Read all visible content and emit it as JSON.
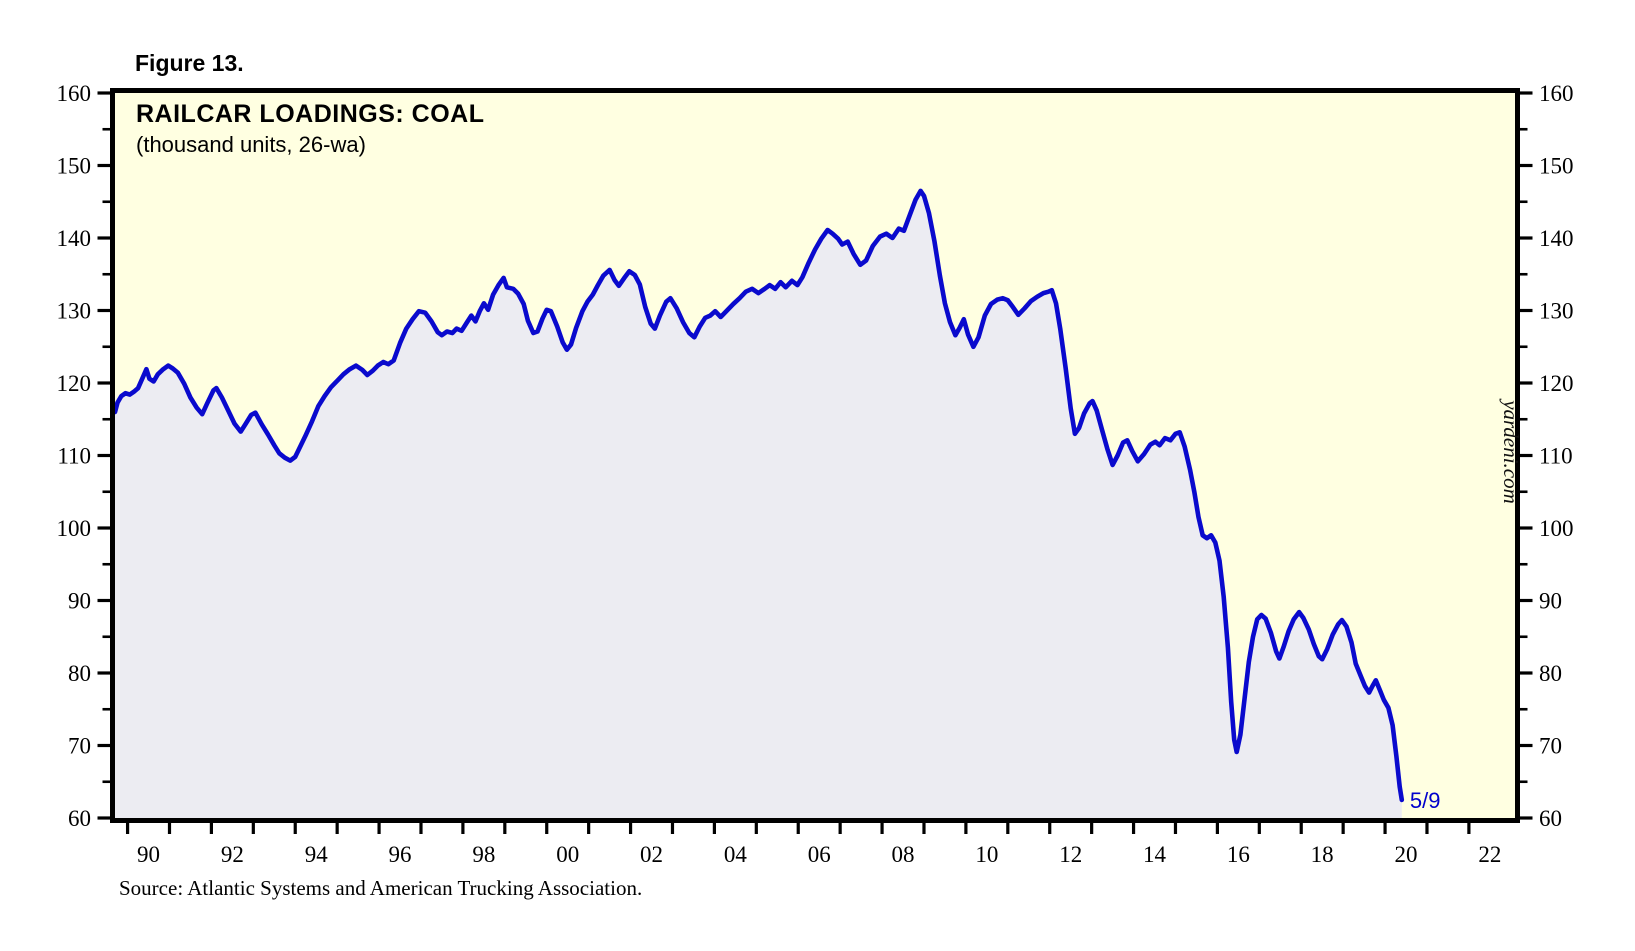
{
  "figure": {
    "label": "Figure 13."
  },
  "chart": {
    "title": "RAILCAR LOADINGS: COAL",
    "subtitle": "(thousand units, 26-wa)",
    "watermark": "yardeni.com",
    "source": "Source: Atlantic Systems and American Trucking Association."
  },
  "colors": {
    "line": "#0a0acd",
    "fill": "#ececf2",
    "plot_background": "#ffffe1",
    "border": "#000000",
    "annotation": "#0000cc",
    "text": "#000000"
  },
  "chart_data": {
    "type": "line",
    "title": "RAILCAR LOADINGS: COAL",
    "subtitle": "(thousand units, 26-wa)",
    "grid": "off",
    "legend": "none",
    "watermark": "yardeni.com",
    "x_axis": {
      "min": 1989.7,
      "max": 2023.1,
      "tick_start": 1990,
      "tick_end": 2022,
      "tick_step_years": 1,
      "label_years": [
        1990,
        1992,
        1994,
        1996,
        1998,
        2000,
        2002,
        2004,
        2006,
        2008,
        2010,
        2012,
        2014,
        2016,
        2018,
        2020,
        2022
      ],
      "labels": [
        "90",
        "92",
        "94",
        "96",
        "98",
        "00",
        "02",
        "04",
        "06",
        "08",
        "10",
        "12",
        "14",
        "16",
        "18",
        "20",
        "22"
      ],
      "label_offset_years": 0.5
    },
    "y_axis": {
      "min": 60,
      "max": 160,
      "major_step": 10,
      "minor_step": 5,
      "labels": [
        "60",
        "70",
        "80",
        "90",
        "100",
        "110",
        "120",
        "130",
        "140",
        "150",
        "160"
      ],
      "mirrored_right": true
    },
    "last_point_label": {
      "text": "5/9",
      "x": 2020.45,
      "y": 62.5,
      "color": "#0000cc"
    },
    "series": [
      {
        "name": "Railcar Loadings: Coal (thousand units, 26-week average)",
        "color": "#0a0acd",
        "fill_color": "#ececf2",
        "points": [
          [
            1989.7,
            116.0
          ],
          [
            1989.76,
            117.3
          ],
          [
            1989.85,
            118.2
          ],
          [
            1989.95,
            118.6
          ],
          [
            1990.05,
            118.4
          ],
          [
            1990.15,
            118.8
          ],
          [
            1990.25,
            119.3
          ],
          [
            1990.38,
            121.0
          ],
          [
            1990.45,
            121.9
          ],
          [
            1990.52,
            120.6
          ],
          [
            1990.62,
            120.2
          ],
          [
            1990.72,
            121.2
          ],
          [
            1990.85,
            121.9
          ],
          [
            1990.97,
            122.4
          ],
          [
            1991.08,
            122.0
          ],
          [
            1991.2,
            121.4
          ],
          [
            1991.35,
            119.9
          ],
          [
            1991.5,
            118.0
          ],
          [
            1991.65,
            116.6
          ],
          [
            1991.78,
            115.7
          ],
          [
            1991.9,
            117.2
          ],
          [
            1992.05,
            119.0
          ],
          [
            1992.12,
            119.3
          ],
          [
            1992.25,
            118.0
          ],
          [
            1992.4,
            116.2
          ],
          [
            1992.55,
            114.4
          ],
          [
            1992.7,
            113.3
          ],
          [
            1992.82,
            114.4
          ],
          [
            1992.95,
            115.6
          ],
          [
            1993.05,
            115.9
          ],
          [
            1993.2,
            114.3
          ],
          [
            1993.35,
            112.9
          ],
          [
            1993.5,
            111.4
          ],
          [
            1993.62,
            110.3
          ],
          [
            1993.75,
            109.7
          ],
          [
            1993.88,
            109.3
          ],
          [
            1994.0,
            109.8
          ],
          [
            1994.1,
            111.0
          ],
          [
            1994.25,
            112.8
          ],
          [
            1994.4,
            114.7
          ],
          [
            1994.55,
            116.8
          ],
          [
            1994.7,
            118.2
          ],
          [
            1994.85,
            119.4
          ],
          [
            1995.0,
            120.3
          ],
          [
            1995.15,
            121.2
          ],
          [
            1995.3,
            121.9
          ],
          [
            1995.45,
            122.4
          ],
          [
            1995.6,
            121.8
          ],
          [
            1995.72,
            121.1
          ],
          [
            1995.85,
            121.7
          ],
          [
            1995.97,
            122.4
          ],
          [
            1996.1,
            122.9
          ],
          [
            1996.22,
            122.6
          ],
          [
            1996.35,
            123.1
          ],
          [
            1996.5,
            125.5
          ],
          [
            1996.65,
            127.5
          ],
          [
            1996.8,
            128.8
          ],
          [
            1996.95,
            129.9
          ],
          [
            1997.1,
            129.7
          ],
          [
            1997.25,
            128.5
          ],
          [
            1997.4,
            127.0
          ],
          [
            1997.5,
            126.6
          ],
          [
            1997.62,
            127.1
          ],
          [
            1997.75,
            126.9
          ],
          [
            1997.85,
            127.5
          ],
          [
            1997.97,
            127.2
          ],
          [
            1998.1,
            128.4
          ],
          [
            1998.2,
            129.3
          ],
          [
            1998.3,
            128.5
          ],
          [
            1998.4,
            129.9
          ],
          [
            1998.5,
            131.0
          ],
          [
            1998.6,
            130.1
          ],
          [
            1998.72,
            132.2
          ],
          [
            1998.85,
            133.5
          ],
          [
            1998.97,
            134.5
          ],
          [
            1999.05,
            133.2
          ],
          [
            1999.2,
            133.0
          ],
          [
            1999.32,
            132.3
          ],
          [
            1999.45,
            130.9
          ],
          [
            1999.55,
            128.6
          ],
          [
            1999.68,
            126.9
          ],
          [
            1999.78,
            127.1
          ],
          [
            1999.9,
            128.9
          ],
          [
            2000.0,
            130.1
          ],
          [
            2000.1,
            129.9
          ],
          [
            2000.25,
            127.8
          ],
          [
            2000.38,
            125.6
          ],
          [
            2000.48,
            124.6
          ],
          [
            2000.58,
            125.3
          ],
          [
            2000.7,
            127.6
          ],
          [
            2000.85,
            129.9
          ],
          [
            2000.97,
            131.2
          ],
          [
            2001.1,
            132.2
          ],
          [
            2001.22,
            133.5
          ],
          [
            2001.35,
            134.8
          ],
          [
            2001.5,
            135.6
          ],
          [
            2001.62,
            134.2
          ],
          [
            2001.72,
            133.4
          ],
          [
            2001.85,
            134.5
          ],
          [
            2001.97,
            135.4
          ],
          [
            2002.1,
            134.9
          ],
          [
            2002.22,
            133.6
          ],
          [
            2002.35,
            130.5
          ],
          [
            2002.48,
            128.2
          ],
          [
            2002.58,
            127.5
          ],
          [
            2002.7,
            129.3
          ],
          [
            2002.85,
            131.2
          ],
          [
            2002.95,
            131.7
          ],
          [
            2003.1,
            130.3
          ],
          [
            2003.25,
            128.4
          ],
          [
            2003.4,
            126.9
          ],
          [
            2003.52,
            126.3
          ],
          [
            2003.65,
            127.8
          ],
          [
            2003.78,
            129.0
          ],
          [
            2003.9,
            129.3
          ],
          [
            2004.02,
            129.9
          ],
          [
            2004.15,
            129.1
          ],
          [
            2004.3,
            130.0
          ],
          [
            2004.45,
            130.9
          ],
          [
            2004.6,
            131.7
          ],
          [
            2004.75,
            132.6
          ],
          [
            2004.9,
            133.0
          ],
          [
            2005.05,
            132.4
          ],
          [
            2005.2,
            133.0
          ],
          [
            2005.32,
            133.5
          ],
          [
            2005.45,
            133.0
          ],
          [
            2005.58,
            133.9
          ],
          [
            2005.7,
            133.2
          ],
          [
            2005.85,
            134.1
          ],
          [
            2005.98,
            133.5
          ],
          [
            2006.1,
            134.6
          ],
          [
            2006.25,
            136.6
          ],
          [
            2006.4,
            138.4
          ],
          [
            2006.55,
            139.9
          ],
          [
            2006.7,
            141.1
          ],
          [
            2006.82,
            140.6
          ],
          [
            2006.95,
            139.9
          ],
          [
            2007.05,
            139.1
          ],
          [
            2007.18,
            139.5
          ],
          [
            2007.32,
            137.8
          ],
          [
            2007.48,
            136.3
          ],
          [
            2007.62,
            136.9
          ],
          [
            2007.78,
            138.9
          ],
          [
            2007.95,
            140.2
          ],
          [
            2008.1,
            140.6
          ],
          [
            2008.25,
            140.0
          ],
          [
            2008.4,
            141.3
          ],
          [
            2008.52,
            141.0
          ],
          [
            2008.65,
            143.0
          ],
          [
            2008.8,
            145.3
          ],
          [
            2008.92,
            146.5
          ],
          [
            2009.0,
            145.8
          ],
          [
            2009.12,
            143.4
          ],
          [
            2009.25,
            139.5
          ],
          [
            2009.38,
            134.8
          ],
          [
            2009.5,
            131.0
          ],
          [
            2009.62,
            128.4
          ],
          [
            2009.75,
            126.6
          ],
          [
            2009.85,
            127.6
          ],
          [
            2009.95,
            128.8
          ],
          [
            2010.05,
            126.7
          ],
          [
            2010.18,
            125.0
          ],
          [
            2010.3,
            126.3
          ],
          [
            2010.45,
            129.3
          ],
          [
            2010.6,
            130.9
          ],
          [
            2010.75,
            131.5
          ],
          [
            2010.88,
            131.7
          ],
          [
            2011.0,
            131.4
          ],
          [
            2011.12,
            130.5
          ],
          [
            2011.25,
            129.4
          ],
          [
            2011.4,
            130.3
          ],
          [
            2011.55,
            131.3
          ],
          [
            2011.7,
            131.9
          ],
          [
            2011.85,
            132.4
          ],
          [
            2011.97,
            132.6
          ],
          [
            2012.05,
            132.8
          ],
          [
            2012.15,
            131.0
          ],
          [
            2012.25,
            127.5
          ],
          [
            2012.38,
            122.0
          ],
          [
            2012.5,
            116.5
          ],
          [
            2012.6,
            113.0
          ],
          [
            2012.7,
            113.8
          ],
          [
            2012.82,
            115.8
          ],
          [
            2012.95,
            117.2
          ],
          [
            2013.02,
            117.5
          ],
          [
            2013.12,
            116.2
          ],
          [
            2013.25,
            113.5
          ],
          [
            2013.38,
            110.8
          ],
          [
            2013.5,
            108.7
          ],
          [
            2013.62,
            110.0
          ],
          [
            2013.75,
            111.8
          ],
          [
            2013.85,
            112.1
          ],
          [
            2013.97,
            110.6
          ],
          [
            2014.1,
            109.2
          ],
          [
            2014.25,
            110.2
          ],
          [
            2014.4,
            111.5
          ],
          [
            2014.52,
            111.9
          ],
          [
            2014.62,
            111.4
          ],
          [
            2014.75,
            112.4
          ],
          [
            2014.88,
            112.1
          ],
          [
            2015.0,
            113.0
          ],
          [
            2015.1,
            113.2
          ],
          [
            2015.22,
            111.2
          ],
          [
            2015.35,
            108.0
          ],
          [
            2015.45,
            105.0
          ],
          [
            2015.55,
            101.5
          ],
          [
            2015.65,
            99.0
          ],
          [
            2015.75,
            98.6
          ],
          [
            2015.85,
            99.0
          ],
          [
            2015.95,
            98.0
          ],
          [
            2016.05,
            95.5
          ],
          [
            2016.15,
            90.5
          ],
          [
            2016.25,
            83.5
          ],
          [
            2016.33,
            76.0
          ],
          [
            2016.4,
            70.8
          ],
          [
            2016.46,
            69.1
          ],
          [
            2016.55,
            71.5
          ],
          [
            2016.65,
            76.5
          ],
          [
            2016.75,
            81.5
          ],
          [
            2016.85,
            85.0
          ],
          [
            2016.95,
            87.4
          ],
          [
            2017.05,
            88.0
          ],
          [
            2017.15,
            87.5
          ],
          [
            2017.28,
            85.5
          ],
          [
            2017.4,
            83.0
          ],
          [
            2017.48,
            82.0
          ],
          [
            2017.58,
            83.6
          ],
          [
            2017.7,
            85.8
          ],
          [
            2017.82,
            87.4
          ],
          [
            2017.95,
            88.4
          ],
          [
            2018.05,
            87.6
          ],
          [
            2018.18,
            86.0
          ],
          [
            2018.3,
            84.0
          ],
          [
            2018.42,
            82.3
          ],
          [
            2018.5,
            81.9
          ],
          [
            2018.62,
            83.3
          ],
          [
            2018.75,
            85.3
          ],
          [
            2018.88,
            86.7
          ],
          [
            2018.97,
            87.3
          ],
          [
            2019.08,
            86.4
          ],
          [
            2019.2,
            84.2
          ],
          [
            2019.3,
            81.3
          ],
          [
            2019.42,
            79.6
          ],
          [
            2019.52,
            78.2
          ],
          [
            2019.62,
            77.3
          ],
          [
            2019.7,
            78.2
          ],
          [
            2019.78,
            79.0
          ],
          [
            2019.88,
            77.6
          ],
          [
            2019.97,
            76.3
          ],
          [
            2020.08,
            75.2
          ],
          [
            2020.18,
            72.8
          ],
          [
            2020.27,
            68.5
          ],
          [
            2020.35,
            64.3
          ],
          [
            2020.4,
            62.5
          ]
        ]
      }
    ]
  }
}
